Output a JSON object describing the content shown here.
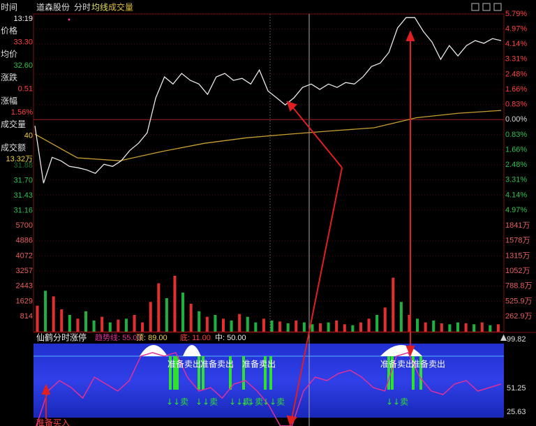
{
  "top_bar": {
    "stock": "道森股份",
    "mode": "分时",
    "avg_line": "均线",
    "volume": "成交量"
  },
  "info_panel": [
    {
      "label": "时间",
      "value": "13:19"
    },
    {
      "label": "价格",
      "value": "33.30"
    },
    {
      "label": "均价",
      "value": "32.60"
    },
    {
      "label": "涨跌",
      "value": "0.51"
    },
    {
      "label": "涨幅",
      "value": "1.56%"
    },
    {
      "label": "成交量",
      "value": "40"
    },
    {
      "label": "成交额",
      "value": "13.32万"
    }
  ],
  "left_axis": {
    "price": [
      "31.88",
      "31.70",
      "31.43",
      "31.16"
    ],
    "volume": [
      "5700",
      "4886",
      "4072",
      "3257",
      "2443",
      "1629",
      "814"
    ]
  },
  "right_axis": {
    "pct_up": [
      "5.79%",
      "4.97%",
      "4.14%",
      "3.31%",
      "2.48%",
      "1.66%",
      "0.83%"
    ],
    "pct_zero": "0.00%",
    "pct_down": [
      "0.83%",
      "1.66%",
      "2.48%",
      "3.31%",
      "4.14%",
      "4.97%"
    ],
    "volume": [
      "1841万",
      "1578万",
      "1315万",
      "1052万",
      "788.8万",
      "525.9万",
      "262.9万"
    ]
  },
  "price_chart": {
    "pct_range": [
      -4.97,
      5.79
    ],
    "price_pct": [
      -0.34,
      -3.49,
      -2.07,
      -2.26,
      -2.57,
      -2.64,
      -2.76,
      -2.95,
      -2.45,
      -2.57,
      -2.26,
      -1.69,
      -1.3,
      -0.73,
      1.19,
      2.34,
      1.95,
      2.53,
      2.15,
      1.95,
      1.38,
      2.34,
      2.53,
      2.15,
      2.26,
      1.95,
      2.72,
      1.57,
      1.19,
      0.8,
      1.19,
      1.76,
      1.95,
      1.65,
      1.95,
      1.76,
      2.03,
      1.95,
      2.34,
      2.91,
      3.1,
      3.68,
      5.02,
      5.59,
      5.59,
      4.83,
      4.25,
      3.3,
      4.06,
      3.49,
      4.06,
      4.33,
      4.18,
      4.44,
      4.33
    ],
    "price_color": "#e8e8e8",
    "avg_pct": [
      -0.8,
      -2.1,
      -2.26,
      -1.75,
      -1.3,
      -1.0,
      -0.8,
      -0.62,
      -0.45,
      0.1,
      0.35,
      0.5
    ],
    "avg_color": "#c8a030",
    "volume_range": [
      0,
      5700
    ],
    "volume": [
      1400,
      2200,
      1900,
      1200,
      900,
      700,
      1100,
      600,
      800,
      500,
      650,
      700,
      900,
      500,
      1600,
      2600,
      1800,
      3000,
      2100,
      1500,
      1100,
      800,
      900,
      700,
      600,
      950,
      800,
      500,
      700,
      600,
      550,
      450,
      600,
      500,
      400,
      450,
      500,
      600,
      400,
      350,
      500,
      700,
      900,
      1300,
      2900,
      1600,
      900,
      700,
      500,
      600,
      450,
      400,
      500,
      450,
      400,
      500,
      350,
      400
    ],
    "volume_up": [
      1,
      0,
      1,
      1,
      0,
      1,
      0,
      0,
      1,
      0,
      1,
      0,
      1,
      1,
      1,
      1,
      0,
      1,
      0,
      1,
      0,
      1,
      0,
      1,
      0,
      1,
      0,
      0,
      1,
      0,
      1,
      0,
      1,
      0,
      0,
      1,
      0,
      1,
      1,
      0,
      1,
      1,
      0,
      1,
      1,
      0,
      1,
      0,
      1,
      0,
      1,
      0,
      0,
      1,
      0,
      1,
      0,
      1
    ],
    "up_color": "#e03030",
    "down_color": "#20b040"
  },
  "indicator": {
    "name": "仙鹤分时涨停",
    "trend": "趋势线: 55.00",
    "top": "顶: 89.00",
    "bottom": "底: 11.00",
    "mid": "中: 50.00",
    "axis": [
      "99.82",
      "51.25",
      "25.63"
    ],
    "range": [
      0,
      99.82
    ],
    "curve": [
      10.6,
      48.2,
      59.5,
      52.0,
      40.7,
      63.3,
      55.8,
      48.2,
      59.5,
      85.9,
      89.7,
      85.9,
      89.7,
      63.3,
      48.2,
      52.0,
      40.7,
      55.8,
      59.5,
      48.2,
      33.2,
      10.6,
      10.6,
      48.2,
      63.3,
      59.5,
      67.1,
      70.8,
      63.3,
      52.0,
      48.2,
      85.9,
      89.7,
      63.3,
      48.2,
      44.5,
      55.8,
      59.5,
      48.2,
      52.0,
      55.8
    ],
    "curve_color": "#e0309a",
    "sell_labels": [
      "准备卖出",
      "准备卖出",
      "准备卖出",
      "准备卖出",
      "准备卖出"
    ],
    "sell_marks": [
      "↓↓卖",
      "↓↓卖",
      "↓↓卖",
      "↓↓卖",
      "↓↓卖",
      "↓↓卖"
    ],
    "buy_label": "准备买入"
  }
}
